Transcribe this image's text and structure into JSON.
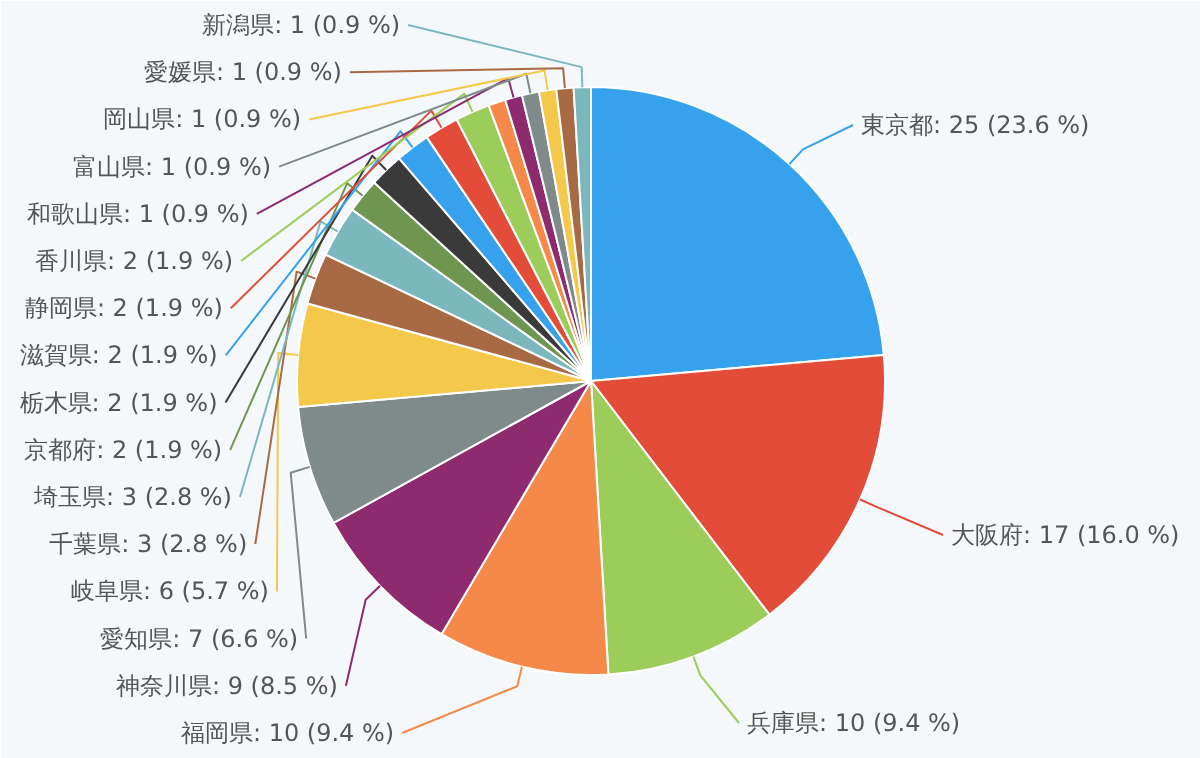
{
  "chart_data": {
    "type": "pie",
    "categories": [
      "東京都",
      "大阪府",
      "兵庫県",
      "福岡県",
      "神奈川県",
      "愛知県",
      "岐阜県",
      "千葉県",
      "埼玉県",
      "京都府",
      "栃木県",
      "滋賀県",
      "静岡県",
      "香川県",
      null,
      "和歌山県",
      "富山県",
      "岡山県",
      "愛媛県",
      "新潟県"
    ],
    "values": [
      25,
      17,
      10,
      10,
      9,
      7,
      6,
      3,
      3,
      2,
      2,
      2,
      2,
      2,
      1,
      1,
      1,
      1,
      1,
      1
    ],
    "value_labels": [
      "25 (23.6 %)",
      "17 (16.0 %)",
      "10 (9.4 %)",
      "10 (9.4 %)",
      "9 (8.5 %)",
      "7 (6.6 %)",
      "6 (5.7 %)",
      "3 (2.8 %)",
      "3 (2.8 %)",
      "2 (1.9 %)",
      "2 (1.9 %)",
      "2 (1.9 %)",
      "2 (1.9 %)",
      "2 (1.9 %)",
      null,
      "1 (0.9 %)",
      "1 (0.9 %)",
      "1 (0.9 %)",
      "1 (0.9 %)",
      "1 (0.9 %)"
    ],
    "colors": [
      "#36a2ee",
      "#e44c3a",
      "#9ccc5a",
      "#f5894a",
      "#8e2a6e",
      "#7f8a8a",
      "#f4c84a",
      "#a86a45",
      "#7ab8be",
      "#6f9650",
      "#3a3a3a",
      "#36a2ee",
      "#e44c3a",
      "#9ccc5a",
      "#f5894a",
      "#8e2a6e",
      "#7f8a8a",
      "#f4c84a",
      "#a86a45",
      "#7ab8be"
    ]
  }
}
